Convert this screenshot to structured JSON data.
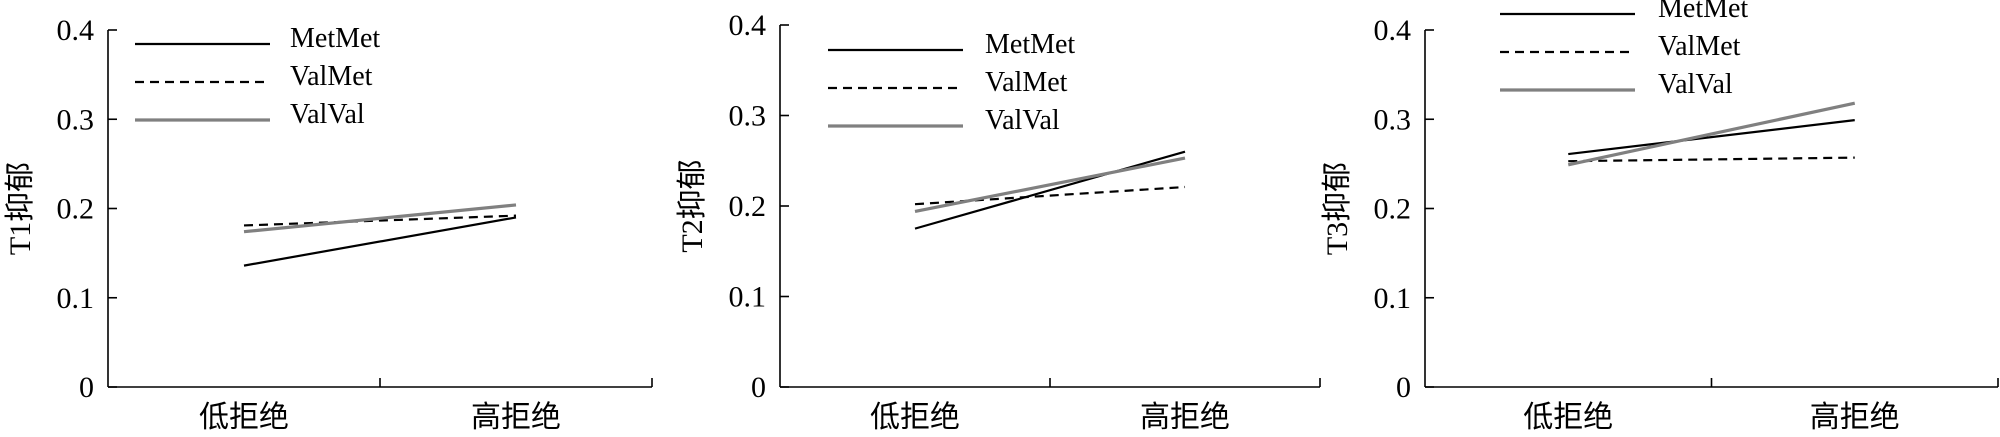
{
  "chart_data": [
    {
      "type": "line",
      "ylabel": "T1抑郁",
      "xlabel": "",
      "categories": [
        "低拒绝",
        "高拒绝"
      ],
      "ylim": [
        0,
        0.4
      ],
      "yticks": [
        "0",
        "0.1",
        "0.2",
        "0.3",
        "0.4"
      ],
      "grid": false,
      "legend_position": "top-left",
      "series": [
        {
          "name": "MetMet",
          "values": [
            0.136,
            0.19
          ],
          "color": "#000000",
          "style": "solid"
        },
        {
          "name": "ValMet",
          "values": [
            0.181,
            0.192
          ],
          "color": "#000000",
          "style": "dashed"
        },
        {
          "name": "ValVal",
          "values": [
            0.174,
            0.204
          ],
          "color": "#808080",
          "style": "solid"
        }
      ]
    },
    {
      "type": "line",
      "ylabel": "T2抑郁",
      "xlabel": "",
      "categories": [
        "低拒绝",
        "高拒绝"
      ],
      "ylim": [
        0,
        0.4
      ],
      "yticks": [
        "0",
        "0.1",
        "0.2",
        "0.3",
        "0.4"
      ],
      "grid": false,
      "legend_position": "top-left",
      "series": [
        {
          "name": "MetMet",
          "values": [
            0.175,
            0.26
          ],
          "color": "#000000",
          "style": "solid"
        },
        {
          "name": "ValMet",
          "values": [
            0.202,
            0.221
          ],
          "color": "#000000",
          "style": "dashed"
        },
        {
          "name": "ValVal",
          "values": [
            0.194,
            0.253
          ],
          "color": "#808080",
          "style": "solid"
        }
      ]
    },
    {
      "type": "line",
      "ylabel": "T3抑郁",
      "xlabel": "",
      "categories": [
        "低拒绝",
        "高拒绝"
      ],
      "ylim": [
        0,
        0.4
      ],
      "yticks": [
        "0",
        "0.1",
        "0.2",
        "0.3",
        "0.4"
      ],
      "grid": false,
      "legend_position": "top-left",
      "series": [
        {
          "name": "MetMet",
          "values": [
            0.261,
            0.299
          ],
          "color": "#000000",
          "style": "solid"
        },
        {
          "name": "ValMet",
          "values": [
            0.253,
            0.257
          ],
          "color": "#000000",
          "style": "dashed"
        },
        {
          "name": "ValVal",
          "values": [
            0.249,
            0.318
          ],
          "color": "#808080",
          "style": "solid"
        }
      ]
    }
  ]
}
